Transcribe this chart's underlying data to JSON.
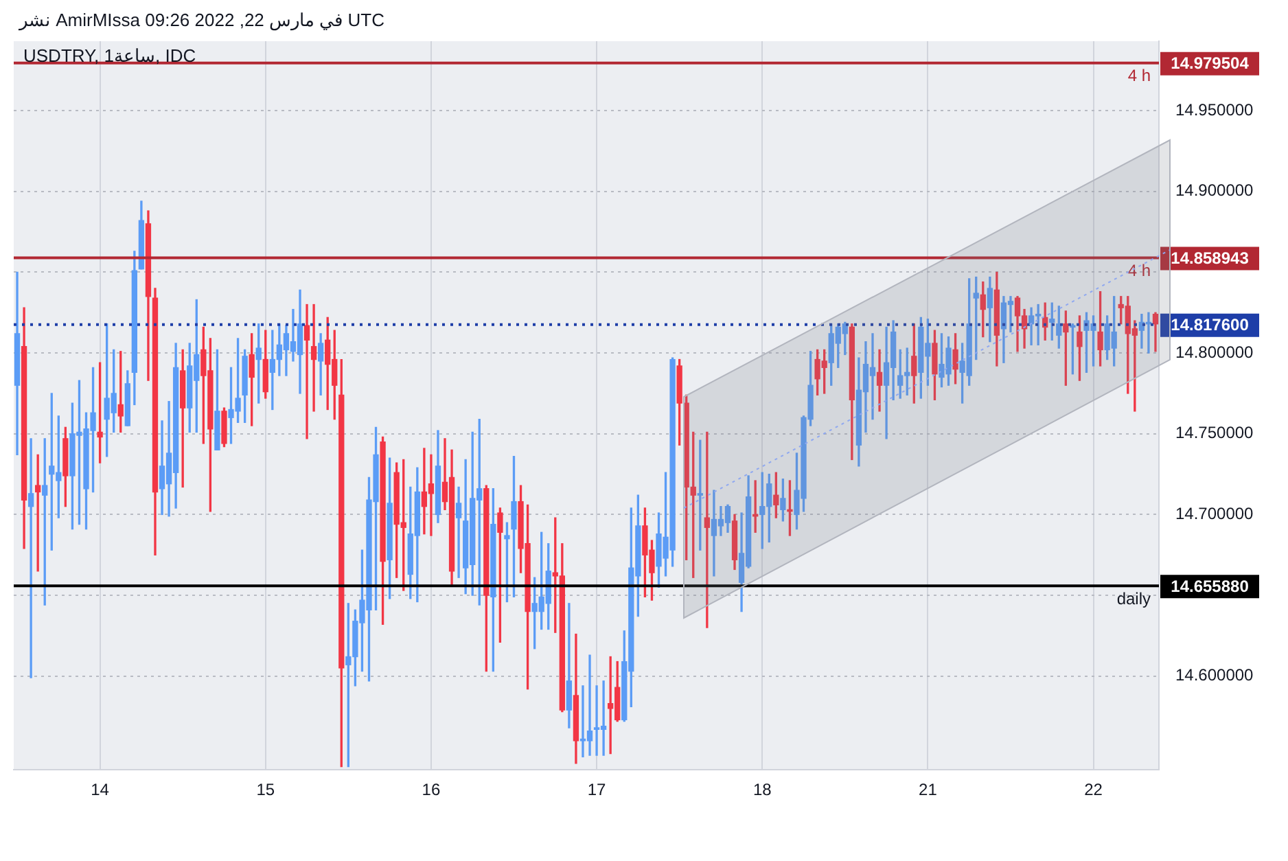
{
  "chart_data": {
    "type": "candlestick",
    "title": "USDTRY, 1ساعة, IDC",
    "subtitle": "نشر AmirMIssa في مارس 22, 2022 09:26 UTC",
    "categories": [
      null,
      null,
      null,
      null,
      null,
      null,
      null,
      null,
      null,
      null,
      null,
      null,
      "14",
      null,
      null,
      null,
      null,
      null,
      null,
      null,
      null,
      null,
      null,
      null,
      null,
      null,
      null,
      null,
      null,
      null,
      null,
      null,
      null,
      null,
      null,
      null,
      "15",
      null,
      null,
      null,
      null,
      null,
      null,
      null,
      null,
      null,
      null,
      null,
      null,
      null,
      null,
      null,
      null,
      null,
      null,
      null,
      null,
      null,
      null,
      null,
      "16",
      null,
      null,
      null,
      null,
      null,
      null,
      null,
      null,
      null,
      null,
      null,
      null,
      null,
      null,
      null,
      null,
      null,
      null,
      null,
      null,
      null,
      null,
      null,
      "17",
      null,
      null,
      null,
      null,
      null,
      null,
      null,
      null,
      null,
      null,
      null,
      null,
      null,
      null,
      null,
      null,
      null,
      null,
      null,
      null,
      null,
      null,
      null,
      "18",
      null,
      null,
      null,
      null,
      null,
      null,
      null,
      null,
      null,
      null,
      null,
      null,
      null,
      null,
      null,
      null,
      null,
      null,
      null,
      null,
      null,
      null,
      null,
      "21",
      null,
      null,
      null,
      null,
      null,
      null,
      null,
      null,
      null,
      null,
      null,
      null,
      null,
      null,
      null,
      null,
      null,
      null,
      null,
      null,
      null,
      null,
      null,
      "22",
      null,
      null,
      null,
      null,
      null,
      null,
      null,
      null,
      null
    ],
    "ohlc": [
      [
        14.78,
        14.85,
        14.737,
        14.812
      ],
      [
        14.804,
        14.828,
        14.679,
        14.709
      ],
      [
        14.705,
        14.747,
        14.599,
        14.713
      ],
      [
        14.718,
        14.737,
        14.665,
        14.714
      ],
      [
        14.712,
        14.747,
        14.644,
        14.718
      ],
      [
        14.725,
        14.775,
        14.678,
        14.73
      ],
      [
        14.721,
        14.761,
        14.698,
        14.726
      ],
      [
        14.747,
        14.754,
        14.705,
        14.724
      ],
      [
        14.724,
        14.769,
        14.691,
        14.75
      ],
      [
        14.749,
        14.783,
        14.694,
        14.751
      ],
      [
        14.716,
        14.763,
        14.691,
        14.753
      ],
      [
        14.752,
        14.791,
        14.714,
        14.763
      ],
      [
        14.751,
        14.794,
        14.732,
        14.748
      ],
      [
        14.759,
        14.818,
        14.736,
        14.772
      ],
      [
        14.763,
        14.802,
        14.751,
        14.775
      ],
      [
        14.768,
        14.801,
        14.751,
        14.761
      ],
      [
        14.755,
        14.789,
        14.755,
        14.781
      ],
      [
        14.788,
        14.863,
        14.768,
        14.851
      ],
      [
        14.852,
        14.894,
        14.852,
        14.882
      ],
      [
        14.88,
        14.888,
        14.783,
        14.835
      ],
      [
        14.834,
        14.84,
        14.675,
        14.714
      ],
      [
        14.716,
        14.758,
        14.7,
        14.73
      ],
      [
        14.719,
        14.77,
        14.699,
        14.738
      ],
      [
        14.726,
        14.806,
        14.704,
        14.791
      ],
      [
        14.789,
        14.802,
        14.717,
        14.766
      ],
      [
        14.766,
        14.806,
        14.751,
        14.792
      ],
      [
        14.783,
        14.833,
        14.751,
        14.799
      ],
      [
        14.802,
        14.816,
        14.744,
        14.786
      ],
      [
        14.789,
        14.809,
        14.702,
        14.753
      ],
      [
        14.74,
        14.802,
        14.74,
        14.764
      ],
      [
        14.764,
        14.766,
        14.742,
        14.744
      ],
      [
        14.76,
        14.791,
        14.744,
        14.765
      ],
      [
        14.764,
        14.809,
        14.757,
        14.772
      ],
      [
        14.774,
        14.802,
        14.757,
        14.798
      ],
      [
        14.799,
        14.812,
        14.755,
        14.785
      ],
      [
        14.796,
        14.818,
        14.769,
        14.803
      ],
      [
        14.796,
        14.814,
        14.772,
        14.776
      ],
      [
        14.788,
        14.814,
        14.765,
        14.796
      ],
      [
        14.796,
        14.818,
        14.786,
        14.805
      ],
      [
        14.802,
        14.817,
        14.786,
        14.812
      ],
      [
        14.801,
        14.827,
        14.795,
        14.807
      ],
      [
        14.799,
        14.839,
        14.775,
        14.818
      ],
      [
        14.817,
        14.83,
        14.747,
        14.808
      ],
      [
        14.804,
        14.83,
        14.764,
        14.796
      ],
      [
        14.795,
        14.812,
        14.774,
        14.806
      ],
      [
        14.808,
        14.822,
        14.765,
        14.793
      ],
      [
        14.796,
        14.814,
        14.759,
        14.78
      ],
      [
        14.774,
        14.796,
        14.544,
        14.605
      ],
      [
        14.607,
        14.645,
        14.544,
        14.612
      ],
      [
        14.612,
        14.641,
        14.594,
        14.634
      ],
      [
        14.633,
        14.678,
        14.603,
        14.647
      ],
      [
        14.641,
        14.723,
        14.597,
        14.709
      ],
      [
        14.708,
        14.754,
        14.641,
        14.737
      ],
      [
        14.745,
        14.748,
        14.632,
        14.671
      ],
      [
        14.672,
        14.735,
        14.648,
        14.707
      ],
      [
        14.726,
        14.732,
        14.661,
        14.694
      ],
      [
        14.695,
        14.734,
        14.653,
        14.692
      ],
      [
        14.663,
        14.717,
        14.648,
        14.688
      ],
      [
        14.687,
        14.729,
        14.646,
        14.714
      ],
      [
        14.714,
        14.741,
        14.688,
        14.705
      ],
      [
        14.719,
        14.737,
        14.687,
        14.713
      ],
      [
        14.7,
        14.752,
        14.695,
        14.73
      ],
      [
        14.72,
        14.747,
        14.703,
        14.708
      ],
      [
        14.723,
        14.74,
        14.656,
        14.665
      ],
      [
        14.698,
        14.717,
        14.661,
        14.707
      ],
      [
        14.667,
        14.734,
        14.651,
        14.696
      ],
      [
        14.669,
        14.751,
        14.65,
        14.71
      ],
      [
        14.709,
        14.759,
        14.644,
        14.716
      ],
      [
        14.716,
        14.718,
        14.603,
        14.65
      ],
      [
        14.649,
        14.716,
        14.603,
        14.694
      ],
      [
        14.701,
        14.704,
        14.621,
        14.689
      ],
      [
        14.685,
        14.695,
        14.646,
        14.687
      ],
      [
        14.691,
        14.736,
        14.649,
        14.708
      ],
      [
        14.708,
        14.718,
        14.664,
        14.679
      ],
      [
        14.682,
        14.706,
        14.592,
        14.64
      ],
      [
        14.64,
        14.661,
        14.617,
        14.645
      ],
      [
        14.64,
        14.689,
        14.629,
        14.649
      ],
      [
        14.645,
        14.682,
        14.629,
        14.665
      ],
      [
        14.664,
        14.698,
        14.627,
        14.662
      ],
      [
        14.662,
        14.682,
        14.578,
        14.579
      ],
      [
        14.579,
        14.645,
        14.568,
        14.597
      ],
      [
        14.588,
        14.626,
        14.546,
        14.56
      ],
      [
        14.56,
        14.594,
        14.55,
        14.561
      ],
      [
        14.56,
        14.613,
        14.551,
        14.566
      ],
      [
        14.567,
        14.594,
        14.551,
        14.568
      ],
      [
        14.567,
        14.597,
        14.551,
        14.569
      ],
      [
        14.583,
        14.612,
        14.552,
        14.58
      ],
      [
        14.593,
        14.609,
        14.572,
        14.573
      ],
      [
        14.573,
        14.628,
        14.572,
        14.609
      ],
      [
        14.603,
        14.704,
        14.581,
        14.667
      ],
      [
        14.662,
        14.712,
        14.637,
        14.693
      ],
      [
        14.693,
        14.704,
        14.649,
        14.675
      ],
      [
        14.678,
        14.684,
        14.647,
        14.664
      ],
      [
        14.668,
        14.701,
        14.655,
        14.688
      ],
      [
        14.673,
        14.726,
        14.662,
        14.686
      ],
      [
        14.678,
        14.797,
        14.668,
        14.796
      ],
      [
        14.792,
        14.796,
        14.743,
        14.769
      ],
      [
        14.769,
        14.774,
        14.672,
        14.717
      ],
      [
        14.717,
        14.751,
        14.661,
        14.712
      ],
      [
        14.712,
        14.746,
        14.678,
        14.713
      ],
      [
        14.698,
        14.751,
        14.63,
        14.692
      ],
      [
        14.687,
        14.715,
        14.662,
        14.697
      ],
      [
        14.693,
        14.705,
        14.687,
        14.697
      ],
      [
        14.695,
        14.706,
        14.689,
        14.705
      ],
      [
        14.696,
        14.7,
        14.666,
        14.672
      ],
      [
        14.658,
        14.701,
        14.64,
        14.676
      ],
      [
        14.668,
        14.724,
        14.667,
        14.711
      ],
      [
        14.7,
        14.721,
        14.689,
        14.699
      ],
      [
        14.7,
        14.726,
        14.679,
        14.705
      ],
      [
        14.705,
        14.725,
        14.683,
        14.719
      ],
      [
        14.712,
        14.726,
        14.698,
        14.706
      ],
      [
        14.703,
        14.722,
        14.696,
        14.71
      ],
      [
        14.703,
        14.721,
        14.687,
        14.702
      ],
      [
        14.7,
        14.738,
        14.691,
        14.715
      ],
      [
        14.71,
        14.761,
        14.702,
        14.76
      ],
      [
        14.759,
        14.801,
        14.755,
        14.78
      ],
      [
        14.796,
        14.802,
        14.774,
        14.784
      ],
      [
        14.795,
        14.802,
        14.775,
        14.791
      ],
      [
        14.794,
        14.818,
        14.78,
        14.812
      ],
      [
        14.806,
        14.818,
        14.791,
        14.816
      ],
      [
        14.812,
        14.819,
        14.799,
        14.818
      ],
      [
        14.816,
        14.818,
        14.734,
        14.771
      ],
      [
        14.743,
        14.797,
        14.73,
        14.777
      ],
      [
        14.776,
        14.807,
        14.751,
        14.793
      ],
      [
        14.786,
        14.812,
        14.759,
        14.791
      ],
      [
        14.788,
        14.802,
        14.764,
        14.78
      ],
      [
        14.78,
        14.816,
        14.747,
        14.794
      ],
      [
        14.791,
        14.82,
        14.771,
        14.813
      ],
      [
        14.78,
        14.802,
        14.772,
        14.786
      ],
      [
        14.786,
        14.803,
        14.774,
        14.788
      ],
      [
        14.798,
        14.818,
        14.769,
        14.786
      ],
      [
        14.788,
        14.822,
        14.772,
        14.816
      ],
      [
        14.798,
        14.821,
        14.78,
        14.806
      ],
      [
        14.806,
        14.814,
        14.771,
        14.787
      ],
      [
        14.785,
        14.812,
        14.779,
        14.793
      ],
      [
        14.787,
        14.81,
        14.78,
        14.803
      ],
      [
        14.802,
        14.812,
        14.781,
        14.79
      ],
      [
        14.788,
        14.806,
        14.769,
        14.795
      ],
      [
        14.786,
        14.846,
        14.78,
        14.818
      ],
      [
        14.834,
        14.847,
        14.796,
        14.837
      ],
      [
        14.836,
        14.844,
        14.81,
        14.827
      ],
      [
        14.828,
        14.847,
        14.807,
        14.84
      ],
      [
        14.839,
        14.85,
        14.792,
        14.811
      ],
      [
        14.815,
        14.835,
        14.794,
        14.831
      ],
      [
        14.83,
        14.835,
        14.813,
        14.832
      ],
      [
        14.834,
        14.835,
        14.801,
        14.823
      ],
      [
        14.823,
        14.827,
        14.803,
        14.815
      ],
      [
        14.818,
        14.828,
        14.805,
        14.823
      ],
      [
        14.823,
        14.83,
        14.805,
        14.824
      ],
      [
        14.822,
        14.831,
        14.808,
        14.816
      ],
      [
        14.819,
        14.831,
        14.808,
        14.821
      ],
      [
        14.811,
        14.829,
        14.803,
        14.818
      ],
      [
        14.818,
        14.826,
        14.78,
        14.813
      ],
      [
        14.816,
        14.818,
        14.787,
        14.817
      ],
      [
        14.813,
        14.823,
        14.783,
        14.804
      ],
      [
        14.814,
        14.825,
        14.788,
        14.82
      ],
      [
        14.814,
        14.823,
        14.792,
        14.818
      ],
      [
        14.813,
        14.838,
        14.792,
        14.802
      ],
      [
        14.802,
        14.823,
        14.796,
        14.818
      ],
      [
        14.803,
        14.835,
        14.792,
        14.813
      ],
      [
        14.83,
        14.835,
        14.818,
        14.828
      ],
      [
        14.829,
        14.835,
        14.775,
        14.812
      ],
      [
        14.815,
        14.82,
        14.764,
        14.811
      ],
      [
        14.814,
        14.824,
        14.803,
        14.819
      ],
      [
        14.818,
        14.825,
        14.8,
        14.819
      ],
      [
        14.824,
        14.825,
        14.801,
        14.818
      ]
    ],
    "colors": [
      "#5b9cf6",
      "#f23645",
      "#5b9cf6",
      "#f23645",
      "#5b9cf6",
      "#5b9cf6",
      "#5b9cf6",
      "#f23645",
      "#5b9cf6",
      "#5b9cf6",
      "#5b9cf6",
      "#5b9cf6",
      "#f23645",
      "#5b9cf6",
      "#5b9cf6",
      "#f23645",
      "#5b9cf6",
      "#5b9cf6",
      "#5b9cf6",
      "#f23645",
      "#f23645",
      "#5b9cf6",
      "#5b9cf6",
      "#5b9cf6",
      "#f23645",
      "#5b9cf6",
      "#5b9cf6",
      "#f23645",
      "#f23645",
      "#5b9cf6",
      "#f23645",
      "#5b9cf6",
      "#5b9cf6",
      "#5b9cf6",
      "#f23645",
      "#5b9cf6",
      "#f23645",
      "#5b9cf6",
      "#5b9cf6",
      "#5b9cf6",
      "#5b9cf6",
      "#5b9cf6",
      "#f23645",
      "#f23645",
      "#5b9cf6",
      "#f23645",
      "#f23645",
      "#f23645",
      "#5b9cf6",
      "#5b9cf6",
      "#5b9cf6",
      "#5b9cf6",
      "#5b9cf6",
      "#f23645",
      "#5b9cf6",
      "#f23645",
      "#f23645",
      "#5b9cf6",
      "#5b9cf6",
      "#f23645",
      "#f23645",
      "#5b9cf6",
      "#f23645",
      "#f23645",
      "#5b9cf6",
      "#5b9cf6",
      "#5b9cf6",
      "#5b9cf6",
      "#f23645",
      "#5b9cf6",
      "#f23645",
      "#5b9cf6",
      "#5b9cf6",
      "#f23645",
      "#f23645",
      "#5b9cf6",
      "#5b9cf6",
      "#5b9cf6",
      "#f23645",
      "#f23645",
      "#5b9cf6",
      "#f23645",
      "#5b9cf6",
      "#5b9cf6",
      "#5b9cf6",
      "#5b9cf6",
      "#f23645",
      "#f23645",
      "#5b9cf6",
      "#5b9cf6",
      "#5b9cf6",
      "#f23645",
      "#f23645",
      "#5b9cf6",
      "#5b9cf6",
      "#5b9cf6",
      "#f23645",
      "#f23645",
      "#f23645",
      "#5b9cf6",
      "#f23645",
      "#5b9cf6",
      "#5b9cf6",
      "#5b9cf6",
      "#f23645",
      "#5b9cf6",
      "#5b9cf6",
      "#f23645",
      "#5b9cf6",
      "#5b9cf6",
      "#f23645",
      "#5b9cf6",
      "#f23645",
      "#5b9cf6",
      "#5b9cf6",
      "#5b9cf6",
      "#f23645",
      "#f23645",
      "#5b9cf6",
      "#5b9cf6",
      "#5b9cf6",
      "#f23645",
      "#5b9cf6",
      "#5b9cf6",
      "#5b9cf6",
      "#f23645",
      "#5b9cf6",
      "#5b9cf6",
      "#5b9cf6",
      "#5b9cf6",
      "#f23645",
      "#5b9cf6",
      "#5b9cf6",
      "#f23645",
      "#5b9cf6",
      "#5b9cf6",
      "#f23645",
      "#5b9cf6",
      "#5b9cf6",
      "#5b9cf6",
      "#f23645",
      "#5b9cf6",
      "#f23645",
      "#5b9cf6",
      "#5b9cf6",
      "#f23645",
      "#f23645",
      "#5b9cf6",
      "#5b9cf6",
      "#f23645",
      "#5b9cf6",
      "#5b9cf6",
      "#f23645",
      "#5b9cf6",
      "#f23645",
      "#5b9cf6",
      "#5b9cf6",
      "#f23645",
      "#5b9cf6",
      "#5b9cf6",
      "#f23645",
      "#f23645",
      "#f23645",
      "#5b9cf6",
      "#5b9cf6",
      "#f23645"
    ],
    "ylim": [
      14.542,
      14.993
    ],
    "yticks": [
      {
        "value": 14.6,
        "label": "14.600000"
      },
      {
        "value": 14.65,
        "label": null
      },
      {
        "value": 14.7,
        "label": "14.700000"
      },
      {
        "value": 14.75,
        "label": "14.750000"
      },
      {
        "value": 14.8,
        "label": "14.800000"
      },
      {
        "value": 14.85,
        "label": null
      },
      {
        "value": 14.9,
        "label": "14.900000"
      },
      {
        "value": 14.95,
        "label": "14.950000"
      }
    ],
    "grid": true,
    "ref_lines": [
      {
        "axis": "y",
        "value": 14.979504,
        "label": "14.979504",
        "color": "#b22833"
      },
      {
        "axis": "y",
        "value": 14.858943,
        "label": "14.858943",
        "color": "#b22833"
      },
      {
        "axis": "y",
        "value": 14.65588,
        "label": "14.655880",
        "color": "#000000"
      },
      {
        "axis": "y",
        "value": 14.8176,
        "label": "14.817600",
        "color": "#1e3ea8",
        "line_style": "dotted"
      }
    ],
    "annotations": [
      {
        "text": "4 h",
        "y": 14.979504
      },
      {
        "text": "4 h",
        "y": 14.858943
      },
      {
        "text": "daily",
        "y": 14.65588
      }
    ]
  }
}
